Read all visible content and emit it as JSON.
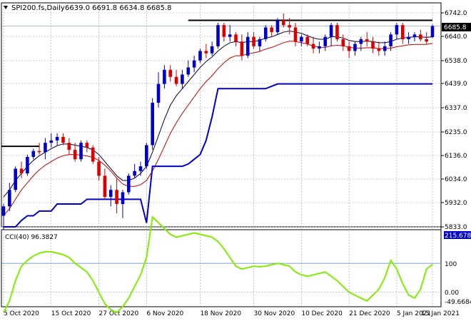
{
  "header": {
    "symbol": "SPI200.fs,Daily",
    "ohlc": "6639.0 6691.8 6634.8 6685.8",
    "triangle_icon": "triangle-down-icon"
  },
  "indicator": {
    "label": "CCI(40) 96.3827",
    "level_upper": "100",
    "level_zero": "0.00",
    "axis_top": "215.6786",
    "axis_bottom": "-49.6684",
    "current_value": 96.3827
  },
  "price_tag": "6685.8",
  "colors": {
    "bull": "#0000cc",
    "bear": "#dd0000",
    "ma_fast": "#000033",
    "ma_slow": "#cc0000",
    "stop_line": "#0000cc",
    "cci": "#80ee00",
    "grid": "#9aa0a6",
    "resistance": "#000000"
  },
  "chart_data": {
    "type": "candlestick",
    "title": "SPI200.fs,Daily",
    "y_ticks": [
      "6742.0",
      "6640.0",
      "6538.0",
      "6439.0",
      "6337.0",
      "6235.0",
      "6136.0",
      "6034.0",
      "5932.0",
      "5833.0"
    ],
    "x_ticks": [
      "5 Oct 2020",
      "15 Oct 2020",
      "27 Oct 2020",
      "6 Nov 2020",
      "18 Nov 2020",
      "30 Nov 2020",
      "10 Dec 2020",
      "21 Dec 2020",
      "5 Jan 2021",
      "15 Jan 2021"
    ],
    "ylim": [
      5833,
      6742
    ],
    "last_price": 6685.8,
    "resistance_level": 6710,
    "old_support_level": 6175,
    "candles": [
      [
        5880,
        5930,
        5820,
        5920
      ],
      [
        5920,
        6020,
        5900,
        5990
      ],
      [
        5990,
        6090,
        5980,
        6080
      ],
      [
        6080,
        6110,
        6040,
        6060
      ],
      [
        6060,
        6140,
        6050,
        6130
      ],
      [
        6130,
        6165,
        6120,
        6155
      ],
      [
        6155,
        6190,
        6140,
        6150
      ],
      [
        6150,
        6210,
        6120,
        6190
      ],
      [
        6190,
        6230,
        6170,
        6200
      ],
      [
        6200,
        6230,
        6180,
        6215
      ],
      [
        6215,
        6230,
        6180,
        6190
      ],
      [
        6190,
        6210,
        6140,
        6160
      ],
      [
        6160,
        6190,
        6110,
        6120
      ],
      [
        6120,
        6200,
        6110,
        6190
      ],
      [
        6190,
        6200,
        6150,
        6170
      ],
      [
        6170,
        6180,
        6100,
        6110
      ],
      [
        6110,
        6130,
        6030,
        6050
      ],
      [
        6050,
        6080,
        5950,
        5960
      ],
      [
        5960,
        6010,
        5920,
        5990
      ],
      [
        5990,
        6040,
        5890,
        5930
      ],
      [
        5930,
        5990,
        5870,
        5980
      ],
      [
        5980,
        6060,
        5970,
        6050
      ],
      [
        6050,
        6100,
        6040,
        6070
      ],
      [
        6070,
        6110,
        6050,
        6090
      ],
      [
        6090,
        6190,
        6080,
        6180
      ],
      [
        6180,
        6380,
        6160,
        6360
      ],
      [
        6360,
        6490,
        6340,
        6440
      ],
      [
        6440,
        6520,
        6420,
        6500
      ],
      [
        6500,
        6520,
        6450,
        6470
      ],
      [
        6470,
        6500,
        6430,
        6440
      ],
      [
        6440,
        6500,
        6420,
        6480
      ],
      [
        6480,
        6540,
        6470,
        6510
      ],
      [
        6510,
        6560,
        6490,
        6540
      ],
      [
        6540,
        6590,
        6530,
        6580
      ],
      [
        6580,
        6610,
        6550,
        6570
      ],
      [
        6570,
        6620,
        6560,
        6600
      ],
      [
        6600,
        6700,
        6590,
        6690
      ],
      [
        6690,
        6700,
        6620,
        6640
      ],
      [
        6640,
        6690,
        6620,
        6650
      ],
      [
        6650,
        6660,
        6600,
        6620
      ],
      [
        6620,
        6650,
        6540,
        6560
      ],
      [
        6560,
        6660,
        6550,
        6640
      ],
      [
        6640,
        6660,
        6590,
        6600
      ],
      [
        6600,
        6640,
        6580,
        6630
      ],
      [
        6630,
        6690,
        6620,
        6680
      ],
      [
        6680,
        6690,
        6640,
        6660
      ],
      [
        6660,
        6720,
        6650,
        6710
      ],
      [
        6710,
        6740,
        6680,
        6690
      ],
      [
        6690,
        6720,
        6650,
        6680
      ],
      [
        6680,
        6700,
        6600,
        6620
      ],
      [
        6620,
        6650,
        6600,
        6640
      ],
      [
        6640,
        6650,
        6600,
        6610
      ],
      [
        6610,
        6640,
        6570,
        6590
      ],
      [
        6590,
        6620,
        6570,
        6600
      ],
      [
        6600,
        6650,
        6580,
        6640
      ],
      [
        6640,
        6700,
        6600,
        6690
      ],
      [
        6690,
        6700,
        6620,
        6630
      ],
      [
        6630,
        6650,
        6580,
        6600
      ],
      [
        6600,
        6620,
        6550,
        6580
      ],
      [
        6580,
        6620,
        6560,
        6610
      ],
      [
        6610,
        6640,
        6580,
        6630
      ],
      [
        6630,
        6660,
        6600,
        6620
      ],
      [
        6620,
        6640,
        6570,
        6590
      ],
      [
        6590,
        6620,
        6560,
        6580
      ],
      [
        6580,
        6620,
        6560,
        6600
      ],
      [
        6600,
        6660,
        6580,
        6650
      ],
      [
        6650,
        6700,
        6630,
        6690
      ],
      [
        6690,
        6700,
        6610,
        6630
      ],
      [
        6630,
        6660,
        6610,
        6640
      ],
      [
        6640,
        6660,
        6620,
        6650
      ],
      [
        6650,
        6670,
        6620,
        6630
      ],
      [
        6630,
        6660,
        6610,
        6620
      ],
      [
        6639,
        6692,
        6635,
        6686
      ]
    ],
    "ma_fast": [
      5960,
      5990,
      6030,
      6060,
      6090,
      6115,
      6135,
      6150,
      6165,
      6178,
      6185,
      6185,
      6180,
      6175,
      6170,
      6160,
      6140,
      6110,
      6080,
      6050,
      6030,
      6030,
      6040,
      6060,
      6090,
      6150,
      6220,
      6290,
      6350,
      6390,
      6420,
      6450,
      6480,
      6510,
      6535,
      6555,
      6580,
      6600,
      6615,
      6620,
      6615,
      6620,
      6620,
      6625,
      6635,
      6640,
      6650,
      6660,
      6665,
      6660,
      6655,
      6645,
      6635,
      6630,
      6630,
      6640,
      6640,
      6635,
      6625,
      6620,
      6620,
      6622,
      6620,
      6615,
      6615,
      6620,
      6630,
      6635,
      6638,
      6640,
      6640,
      6638,
      6640
    ],
    "ma_slow": [
      5880,
      5910,
      5950,
      5990,
      6020,
      6050,
      6075,
      6095,
      6110,
      6125,
      6135,
      6140,
      6140,
      6138,
      6134,
      6128,
      6115,
      6095,
      6070,
      6040,
      6015,
      6005,
      6005,
      6012,
      6030,
      6070,
      6120,
      6175,
      6230,
      6275,
      6315,
      6350,
      6385,
      6420,
      6450,
      6475,
      6505,
      6530,
      6550,
      6560,
      6560,
      6568,
      6572,
      6578,
      6588,
      6595,
      6605,
      6615,
      6622,
      6620,
      6615,
      6610,
      6600,
      6596,
      6595,
      6602,
      6604,
      6602,
      6596,
      6592,
      6592,
      6594,
      6593,
      6590,
      6590,
      6592,
      6598,
      6602,
      6606,
      6608,
      6608,
      6608,
      6612
    ],
    "stop_line": [
      5833,
      5833,
      5833,
      5860,
      5880,
      5880,
      5900,
      5900,
      5900,
      5930,
      5930,
      5930,
      5930,
      5930,
      5950,
      5950,
      5950,
      5950,
      5950,
      5950,
      5950,
      5950,
      5950,
      5950,
      5850,
      6090,
      6090,
      6090,
      6090,
      6090,
      6090,
      6100,
      6120,
      6140,
      6200,
      6300,
      6420,
      6420,
      6420,
      6420,
      6420,
      6420,
      6420,
      6420,
      6420,
      6430,
      6440,
      6440,
      6440,
      6440,
      6440,
      6440,
      6440,
      6440,
      6440,
      6440,
      6440,
      6440,
      6440,
      6440,
      6440,
      6440,
      6440,
      6440,
      6440,
      6440,
      6440,
      6440,
      6440,
      6440,
      6440,
      6440,
      6440
    ],
    "cci": [
      -70,
      -30,
      40,
      90,
      110,
      125,
      135,
      140,
      140,
      135,
      130,
      120,
      100,
      85,
      70,
      40,
      0,
      -40,
      -60,
      -70,
      -50,
      -20,
      20,
      60,
      120,
      260,
      240,
      220,
      200,
      190,
      195,
      200,
      205,
      200,
      195,
      190,
      175,
      150,
      120,
      90,
      80,
      85,
      90,
      88,
      90,
      95,
      100,
      95,
      90,
      70,
      60,
      55,
      60,
      65,
      70,
      55,
      40,
      20,
      0,
      -10,
      -20,
      -30,
      -10,
      10,
      50,
      110,
      80,
      30,
      -10,
      -20,
      10,
      80,
      96
    ]
  }
}
